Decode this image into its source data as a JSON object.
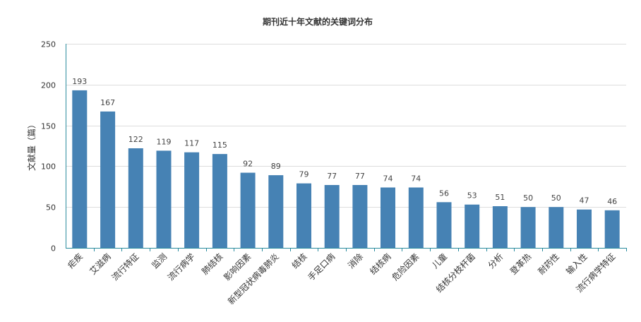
{
  "chart_data": {
    "type": "bar",
    "title": "期刊近十年文献的关键词分布",
    "ylabel": "文献量（篇）",
    "xlabel": "",
    "ylim": [
      0,
      250
    ],
    "yticks": [
      0,
      50,
      100,
      150,
      200,
      250
    ],
    "grid": true,
    "bar_color": "#4682b4",
    "categories": [
      "疟疾",
      "艾滋病",
      "流行特征",
      "监测",
      "流行病学",
      "肺结核",
      "影响因素",
      "新型冠状病毒肺炎",
      "结核",
      "手足口病",
      "消除",
      "结核病",
      "危险因素",
      "儿童",
      "结核分枝杆菌",
      "分析",
      "登革热",
      "耐药性",
      "输入性",
      "流行病学特征"
    ],
    "values": [
      193,
      167,
      122,
      119,
      117,
      115,
      92,
      89,
      79,
      77,
      77,
      74,
      74,
      56,
      53,
      51,
      50,
      50,
      47,
      46
    ]
  }
}
